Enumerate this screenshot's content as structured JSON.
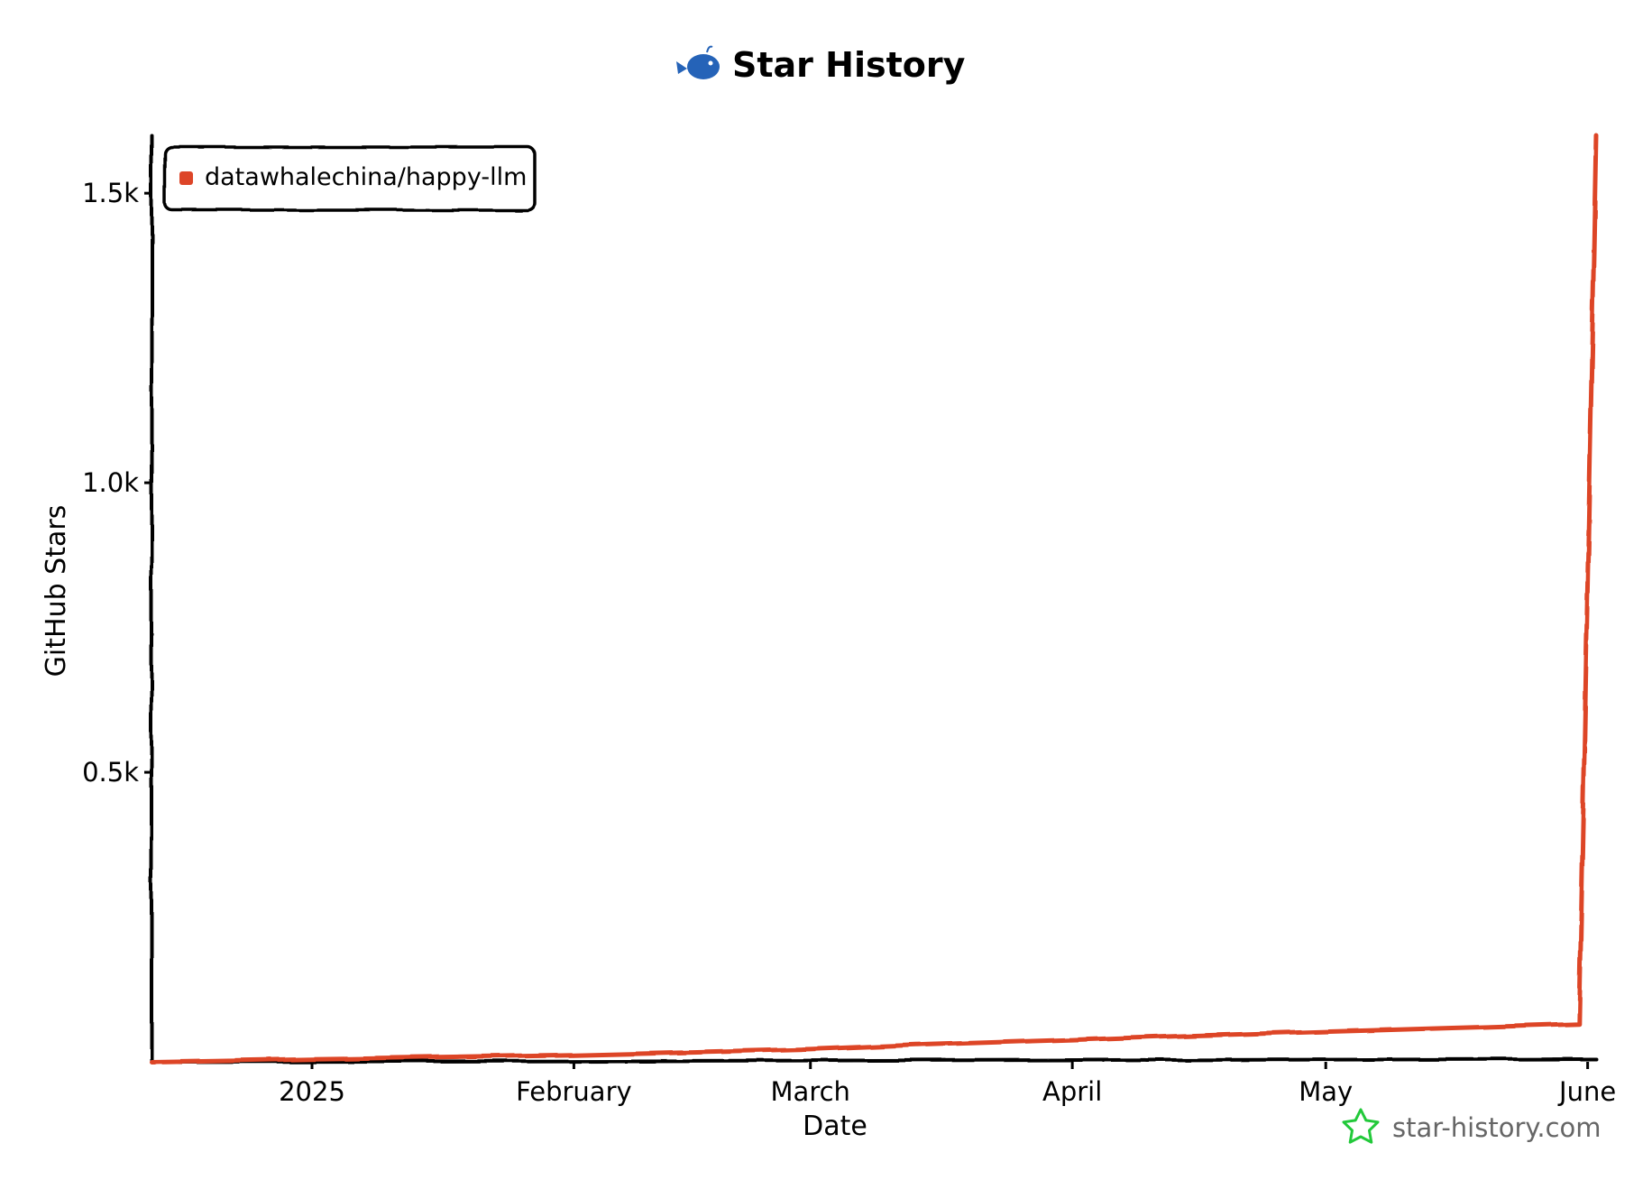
{
  "chart_data": {
    "type": "line",
    "title": "Star History",
    "xlabel": "Date",
    "ylabel": "GitHub Stars",
    "x_ticks": [
      "2025",
      "February",
      "March",
      "April",
      "May",
      "June"
    ],
    "x_tick_dates": [
      "2025-01-01",
      "2025-02-01",
      "2025-03-01",
      "2025-04-01",
      "2025-05-01",
      "2025-06-01"
    ],
    "y_ticks": [
      "0.5k",
      "1.0k",
      "1.5k"
    ],
    "y_tick_values": [
      500,
      1000,
      1500
    ],
    "xlim": [
      "2024-12-13",
      "2025-06-02"
    ],
    "ylim": [
      0,
      1600
    ],
    "grid": false,
    "legend_position": "top-left",
    "series": [
      {
        "name": "datawhalechina/happy-llm",
        "color": "#dd4528",
        "points": [
          {
            "x": "2024-12-13",
            "y": 0
          },
          {
            "x": "2025-01-01",
            "y": 5
          },
          {
            "x": "2025-01-15",
            "y": 8
          },
          {
            "x": "2025-02-01",
            "y": 12
          },
          {
            "x": "2025-02-15",
            "y": 17
          },
          {
            "x": "2025-03-01",
            "y": 22
          },
          {
            "x": "2025-03-15",
            "y": 30
          },
          {
            "x": "2025-04-01",
            "y": 38
          },
          {
            "x": "2025-04-15",
            "y": 45
          },
          {
            "x": "2025-05-01",
            "y": 52
          },
          {
            "x": "2025-05-15",
            "y": 58
          },
          {
            "x": "2025-05-31",
            "y": 65
          },
          {
            "x": "2025-06-02",
            "y": 1600
          }
        ]
      }
    ]
  },
  "watermark": {
    "text": "star-history.com",
    "icon": "star-outline-icon",
    "icon_color": "#22c93a"
  },
  "title_icon": {
    "icon": "whale-icon",
    "color": "#2563b8"
  },
  "axis_color": "#000000"
}
